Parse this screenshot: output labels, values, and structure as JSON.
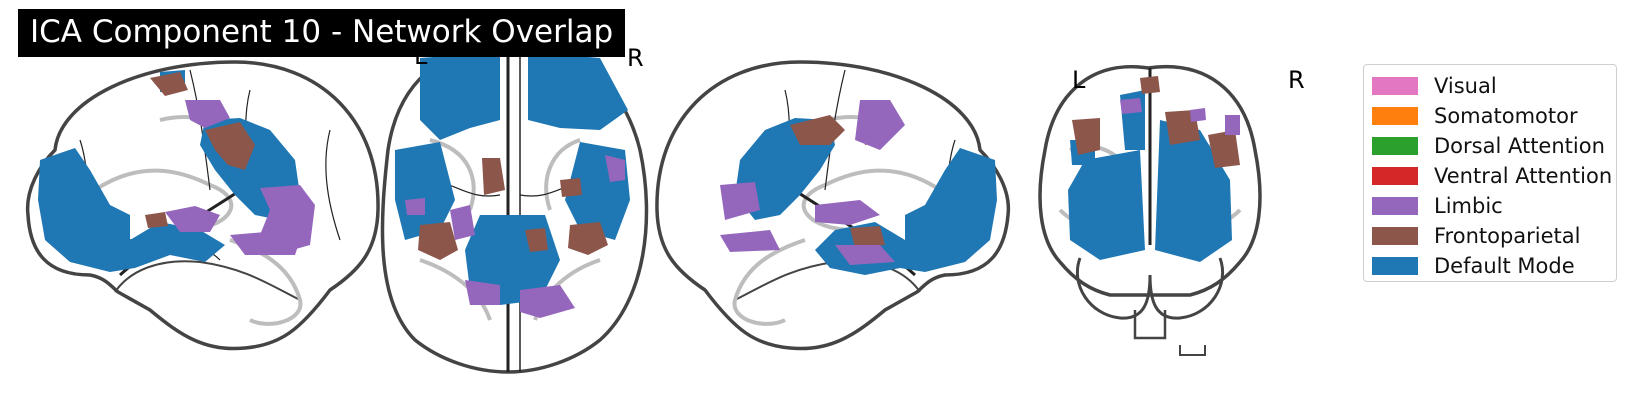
{
  "title": "ICA Component 10 - Network Overlap",
  "axial_labels": {
    "left": "L",
    "right": "R"
  },
  "coronal_labels": {
    "left": "L",
    "right": "R"
  },
  "views": [
    "sagittal-left",
    "axial",
    "sagittal-right",
    "coronal"
  ],
  "legend": [
    {
      "label": "Visual",
      "color": "#e377c2"
    },
    {
      "label": "Somatomotor",
      "color": "#ff7f0e"
    },
    {
      "label": "Dorsal Attention",
      "color": "#2ca02c"
    },
    {
      "label": "Ventral Attention",
      "color": "#d62728"
    },
    {
      "label": "Limbic",
      "color": "#9467bd"
    },
    {
      "label": "Frontoparietal",
      "color": "#8c564b"
    },
    {
      "label": "Default Mode",
      "color": "#1f77b4"
    }
  ],
  "colors": {
    "outline": "#444444",
    "sulci": "#bdbdbd",
    "gyri": "#222222"
  }
}
